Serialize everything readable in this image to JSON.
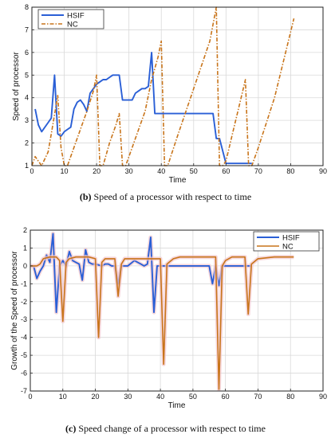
{
  "colors": {
    "hsif": "#2a5fd6",
    "nc": "#c8741a",
    "axis": "#222222",
    "grid": "#d9d9d9",
    "pink": "#f2c6cc"
  },
  "captions": [
    {
      "label": "(b)",
      "text": " Speed of a processor with respect to time"
    },
    {
      "label": "(c)",
      "text": " Speed change of a processor with respect to time"
    }
  ],
  "chart_data": [
    {
      "type": "line",
      "xlabel": "Time",
      "ylabel": "Speed of processor",
      "xlim": [
        0,
        90
      ],
      "ylim": [
        1,
        8
      ],
      "xticks": [
        0,
        10,
        20,
        30,
        40,
        50,
        60,
        70,
        80,
        90
      ],
      "yticks": [
        1,
        2,
        3,
        4,
        5,
        6,
        7,
        8
      ],
      "grid": true,
      "legend": "top-left",
      "series": [
        {
          "name": "HSIF",
          "style": "solid",
          "x": [
            1,
            2,
            3,
            5,
            6,
            7,
            8,
            9,
            10,
            11,
            12,
            13,
            14,
            15,
            16,
            17,
            18,
            19,
            20,
            21,
            22,
            23,
            24,
            25,
            26,
            27,
            28,
            29,
            30,
            31,
            32,
            33,
            34,
            35,
            36,
            37,
            38,
            39,
            40,
            45,
            50,
            55,
            56,
            57,
            58,
            60,
            65,
            68
          ],
          "y": [
            3.5,
            2.8,
            2.5,
            2.9,
            3.1,
            5.0,
            2.4,
            2.3,
            2.5,
            2.6,
            2.7,
            3.5,
            3.8,
            3.9,
            3.7,
            3.4,
            4.2,
            4.4,
            4.6,
            4.7,
            4.8,
            4.8,
            4.9,
            5.0,
            5.0,
            5.0,
            3.9,
            3.9,
            3.9,
            3.9,
            4.2,
            4.3,
            4.4,
            4.4,
            4.5,
            6.0,
            3.3,
            3.3,
            3.3,
            3.3,
            3.3,
            3.3,
            3.3,
            2.2,
            2.2,
            1.1,
            1.1,
            1.1
          ]
        },
        {
          "name": "NC",
          "style": "dashdot",
          "x": [
            0,
            1,
            2,
            3,
            5,
            6,
            8,
            9,
            10,
            11,
            13,
            15,
            17,
            19,
            20,
            21,
            22,
            23,
            24,
            26,
            27,
            28,
            29,
            31,
            33,
            35,
            37,
            39,
            40,
            41,
            42,
            45,
            50,
            55,
            57,
            58,
            59,
            60,
            62,
            64,
            66,
            67,
            68,
            70,
            75,
            81
          ],
          "y": [
            1,
            1.4,
            1.2,
            1.0,
            1.6,
            2.4,
            4.1,
            1.8,
            1.0,
            1.0,
            1.8,
            2.6,
            3.4,
            4.3,
            5.0,
            1.0,
            1.0,
            1.5,
            2.0,
            2.8,
            3.3,
            1.0,
            1.0,
            1.8,
            2.6,
            3.4,
            4.8,
            5.8,
            6.5,
            1.0,
            1.0,
            2.3,
            4.4,
            6.5,
            8.0,
            1.0,
            1.0,
            1.2,
            2.4,
            3.6,
            4.8,
            1.0,
            1.0,
            1.8,
            4.0,
            7.5
          ]
        }
      ]
    },
    {
      "type": "line",
      "xlabel": "Time",
      "ylabel": "Growth of the Speed of processor",
      "xlim": [
        0,
        90
      ],
      "ylim": [
        -7,
        2
      ],
      "xticks": [
        0,
        10,
        20,
        30,
        40,
        50,
        60,
        70,
        80,
        90
      ],
      "yticks": [
        -7,
        -6,
        -5,
        -4,
        -3,
        -2,
        -1,
        0,
        1,
        2
      ],
      "grid": true,
      "legend": "top-right",
      "series": [
        {
          "name": "HSIF",
          "x": [
            1,
            2,
            3,
            4,
            5,
            6,
            7,
            8,
            9,
            10,
            11,
            12,
            13,
            14,
            15,
            16,
            17,
            18,
            19,
            20,
            22,
            23,
            24,
            25,
            26,
            27,
            28,
            30,
            32,
            34,
            35,
            36,
            37,
            38,
            39,
            40,
            45,
            50,
            55,
            56,
            57,
            58,
            59,
            60,
            62,
            65,
            68
          ],
          "y": [
            0,
            -0.7,
            -0.3,
            0,
            0.6,
            0.2,
            1.8,
            -2.6,
            0.0,
            0.3,
            0.0,
            0.8,
            0.3,
            0.2,
            0.1,
            -0.8,
            0.9,
            0.2,
            0.1,
            0.1,
            0.0,
            0.1,
            0.1,
            0.0,
            0.0,
            -1.0,
            0.0,
            0.0,
            0.3,
            0.1,
            0.0,
            0.1,
            1.6,
            -2.6,
            0.0,
            0.0,
            0.0,
            0.0,
            0.0,
            -1.0,
            0.0,
            -1.1,
            0.0,
            0.0,
            0.0,
            0.0,
            0.0
          ]
        },
        {
          "name": "NC",
          "x": [
            0,
            2,
            3,
            4,
            6,
            8,
            9,
            10,
            11,
            12,
            14,
            16,
            18,
            20,
            21,
            22,
            23,
            25,
            26,
            27,
            28,
            29,
            31,
            33,
            35,
            37,
            39,
            40,
            41,
            42,
            44,
            46,
            50,
            55,
            57,
            58,
            59,
            60,
            62,
            64,
            66,
            67,
            68,
            70,
            75,
            81
          ],
          "y": [
            0,
            0,
            0.1,
            0.4,
            0.5,
            0.5,
            0.3,
            -3.1,
            0.2,
            0.4,
            0.5,
            0.5,
            0.5,
            0.4,
            -4.0,
            0.2,
            0.4,
            0.4,
            0.4,
            -1.7,
            0.1,
            0.4,
            0.4,
            0.4,
            0.4,
            0.4,
            0.4,
            0.4,
            -5.5,
            0.1,
            0.4,
            0.5,
            0.5,
            0.5,
            0.5,
            -6.9,
            0.0,
            0.3,
            0.5,
            0.5,
            0.5,
            -2.7,
            0.1,
            0.4,
            0.5,
            0.5
          ]
        }
      ]
    }
  ]
}
